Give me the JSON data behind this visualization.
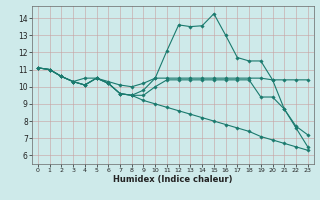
{
  "xlabel": "Humidex (Indice chaleur)",
  "xlim": [
    -0.5,
    23.5
  ],
  "ylim": [
    5.5,
    14.7
  ],
  "yticks": [
    6,
    7,
    8,
    9,
    10,
    11,
    12,
    13,
    14
  ],
  "xticks": [
    0,
    1,
    2,
    3,
    4,
    5,
    6,
    7,
    8,
    9,
    10,
    11,
    12,
    13,
    14,
    15,
    16,
    17,
    18,
    19,
    20,
    21,
    22,
    23
  ],
  "bg_color": "#ceeaea",
  "line_color": "#1a7a6e",
  "lines": [
    {
      "x": [
        0,
        1,
        2,
        3,
        4,
        5,
        6,
        7,
        8,
        9,
        10,
        11,
        12,
        13,
        14,
        15,
        16,
        17,
        18,
        19,
        20,
        21,
        22,
        23
      ],
      "y": [
        11.1,
        11.0,
        10.6,
        10.3,
        10.1,
        10.5,
        10.2,
        9.6,
        9.5,
        9.8,
        10.5,
        12.1,
        13.6,
        13.5,
        13.55,
        14.25,
        13.0,
        11.7,
        11.5,
        11.5,
        10.4,
        8.7,
        7.6,
        6.5
      ]
    },
    {
      "x": [
        0,
        1,
        2,
        3,
        4,
        5,
        6,
        7,
        8,
        9,
        10,
        11,
        12,
        13,
        14,
        15,
        16,
        17,
        18,
        19,
        20,
        21,
        22,
        23
      ],
      "y": [
        11.1,
        11.0,
        10.6,
        10.3,
        10.5,
        10.5,
        10.3,
        10.1,
        10.0,
        10.2,
        10.5,
        10.5,
        10.5,
        10.5,
        10.5,
        10.5,
        10.5,
        10.5,
        10.5,
        10.5,
        10.4,
        10.4,
        10.4,
        10.4
      ]
    },
    {
      "x": [
        0,
        1,
        2,
        3,
        4,
        5,
        6,
        7,
        8,
        9,
        10,
        11,
        12,
        13,
        14,
        15,
        16,
        17,
        18,
        19,
        20,
        21,
        22,
        23
      ],
      "y": [
        11.1,
        11.0,
        10.6,
        10.3,
        10.1,
        10.5,
        10.2,
        9.6,
        9.5,
        9.5,
        10.0,
        10.4,
        10.4,
        10.4,
        10.4,
        10.4,
        10.4,
        10.4,
        10.4,
        9.4,
        9.4,
        8.7,
        7.7,
        7.2
      ]
    },
    {
      "x": [
        0,
        1,
        2,
        3,
        4,
        5,
        6,
        7,
        8,
        9,
        10,
        11,
        12,
        13,
        14,
        15,
        16,
        17,
        18,
        19,
        20,
        21,
        22,
        23
      ],
      "y": [
        11.1,
        11.0,
        10.6,
        10.3,
        10.1,
        10.5,
        10.2,
        9.6,
        9.5,
        9.2,
        9.0,
        8.8,
        8.6,
        8.4,
        8.2,
        8.0,
        7.8,
        7.6,
        7.4,
        7.1,
        6.9,
        6.7,
        6.5,
        6.3
      ]
    }
  ]
}
